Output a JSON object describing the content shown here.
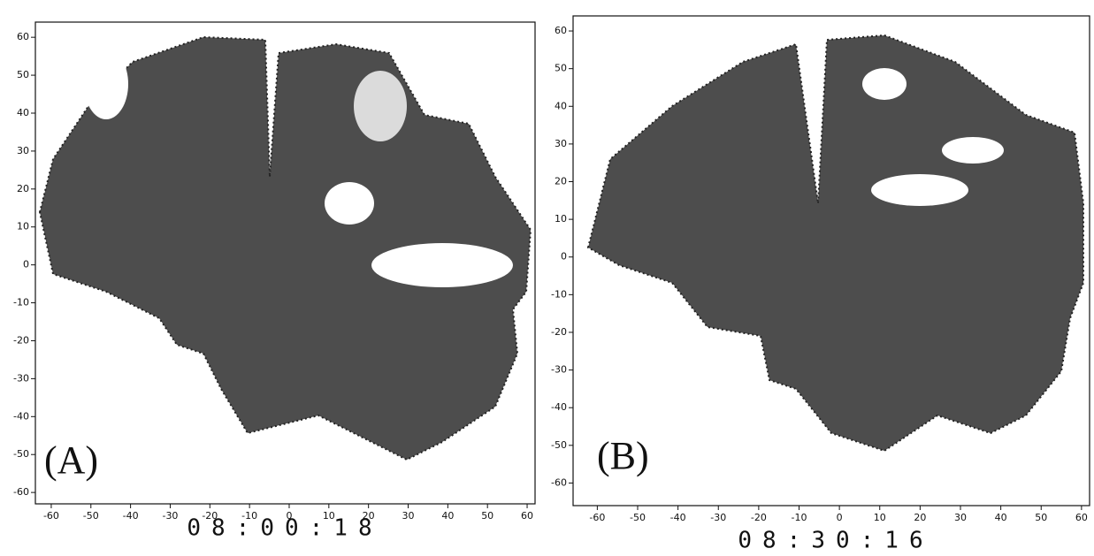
{
  "chart_data": [
    {
      "type": "radar",
      "label": "(A)",
      "caption": "08:00:18",
      "xlim": [
        -64,
        62
      ],
      "ylim": [
        -63,
        64
      ],
      "xticks": [
        -60,
        -50,
        -40,
        -30,
        -20,
        -10,
        0,
        10,
        20,
        30,
        40,
        50,
        60
      ],
      "yticks": [
        -60,
        -50,
        -40,
        -30,
        -20,
        -10,
        0,
        10,
        20,
        30,
        40,
        50,
        60
      ]
    },
    {
      "type": "radar",
      "label": "(B)",
      "caption": "08:30:16",
      "xlim": [
        -66,
        62
      ],
      "ylim": [
        -66,
        64
      ],
      "xticks": [
        -60,
        -50,
        -40,
        -30,
        -20,
        -10,
        0,
        10,
        20,
        30,
        40,
        50,
        60
      ],
      "yticks": [
        -60,
        -50,
        -40,
        -30,
        -20,
        -10,
        0,
        10,
        20,
        30,
        40,
        50,
        60
      ]
    }
  ]
}
